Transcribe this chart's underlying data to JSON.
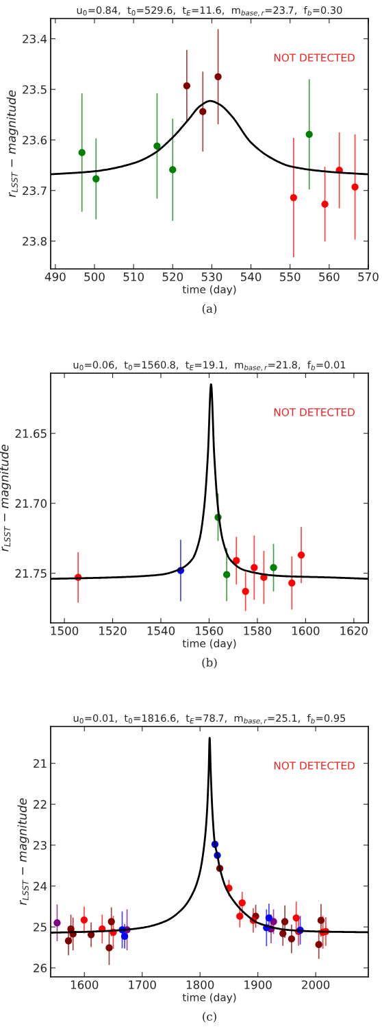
{
  "chart_data": [
    {
      "type": "scatter",
      "title": "u$_{0}$=0.84,  t$_{0}$=529.6,  t$_{E}$=11.6,  m$_{base,r}$=23.7,  f$_{b}$=0.30",
      "xlabel": "time (day)",
      "ylabel": "r$_{LSST}$ − magnitude",
      "annotations": [
        "NOT DETECTED",
        "(a)"
      ],
      "xlim": [
        488.8,
        570
      ],
      "ylim": [
        23.855,
        23.36
      ],
      "xticks": [
        490,
        500,
        510,
        520,
        530,
        540,
        550,
        560,
        570
      ],
      "yticks": [
        23.4,
        23.5,
        23.6,
        23.7,
        23.8
      ],
      "marker": "circle",
      "grid": false,
      "series": [
        {
          "color": "#008000",
          "x": [
            496.8,
            500.4,
            516.0,
            520.0,
            554.9
          ],
          "values": [
            23.625,
            23.677,
            23.612,
            23.659,
            23.589
          ],
          "errors": [
            0.117,
            0.08,
            0.104,
            0.101,
            0.109
          ]
        },
        {
          "color": "#800000",
          "x": [
            523.6,
            527.7,
            531.6
          ],
          "values": [
            23.493,
            23.544,
            23.475
          ],
          "errors": [
            0.071,
            0.079,
            0.094
          ]
        },
        {
          "color": "#ff0000",
          "x": [
            550.9,
            558.9,
            562.6,
            566.6
          ],
          "values": [
            23.714,
            23.727,
            23.66,
            23.693
          ],
          "errors": [
            0.118,
            0.074,
            0.075,
            0.104
          ]
        },
        {
          "type": "line",
          "marker": "none",
          "color": "#000000",
          "x": [
            488.8,
            500,
            510,
            515,
            520,
            524,
            527,
            529.6,
            532,
            535,
            540,
            545,
            550,
            560,
            570
          ],
          "values": [
            23.668,
            23.662,
            23.646,
            23.628,
            23.595,
            23.56,
            23.533,
            23.523,
            23.53,
            23.552,
            23.605,
            23.635,
            23.652,
            23.663,
            23.668
          ]
        }
      ]
    },
    {
      "type": "scatter",
      "title": "u$_{0}$=0.06,  t$_{0}$=1560.8,  t$_{E}$=19.1,  m$_{base,r}$=21.8,  f$_{b}$=0.01",
      "xlabel": "time (day)",
      "ylabel": "r$_{LSST}$ − magnitude",
      "annotations": [
        "NOT DETECTED",
        "(b)"
      ],
      "xlim": [
        1494.3,
        1626
      ],
      "ylim": [
        21.7855,
        21.607
      ],
      "xticks": [
        1500,
        1520,
        1540,
        1560,
        1580,
        1600,
        1620
      ],
      "yticks": [
        21.65,
        {
          "value": 21.7,
          "label": "21.70"
        },
        21.75
      ],
      "marker": "circle",
      "grid": false,
      "series": [
        {
          "color": "#ff0000",
          "x": [
            1505.7,
            1571.3,
            1575.1,
            1578.7,
            1582.7,
            1594.3,
            1598.2
          ],
          "values": [
            21.753,
            21.741,
            21.763,
            21.746,
            21.753,
            21.757,
            21.737
          ],
          "errors": [
            0.018,
            0.017,
            0.014,
            0.023,
            0.019,
            0.019,
            0.02
          ]
        },
        {
          "color": "#0000ff",
          "x": [
            1548.2
          ],
          "values": [
            21.748
          ],
          "errors": [
            0.022
          ]
        },
        {
          "color": "#008000",
          "x": [
            1563.7,
            1567.3,
            1586.7
          ],
          "values": [
            21.71,
            21.751,
            21.746
          ],
          "errors": [
            0.017,
            0.019,
            0.017
          ]
        },
        {
          "type": "line",
          "marker": "none",
          "color": "#000000",
          "x": [
            1494.3,
            1520,
            1540,
            1548,
            1553,
            1556,
            1558,
            1559.5,
            1560.8,
            1562.1,
            1563.6,
            1565.6,
            1568.6,
            1575,
            1590,
            1610,
            1626
          ],
          "values": [
            21.754,
            21.753,
            21.751,
            21.747,
            21.74,
            21.726,
            21.702,
            21.665,
            21.615,
            21.665,
            21.702,
            21.726,
            21.74,
            21.748,
            21.752,
            21.753,
            21.754
          ]
        }
      ]
    },
    {
      "type": "scatter",
      "title": "u$_{0}$=0.01,  t$_{0}$=1816.6,  t$_{E}$=78.7,  m$_{base,r}$=25.1,  f$_{b}$=0.95",
      "xlabel": "time (day)",
      "ylabel": "r$_{LSST}$ − magnitude",
      "annotations": [
        "NOT DETECTED",
        "(c)"
      ],
      "xlim": [
        1541.7,
        2091
      ],
      "ylim": [
        26.22,
        20.1
      ],
      "xticks": [
        1600,
        1700,
        1800,
        1900,
        2000
      ],
      "yticks": [
        21,
        22,
        23,
        24,
        25,
        26
      ],
      "marker": "circle",
      "grid": false,
      "series": [
        {
          "color": "#800080",
          "x": [
            1552.9,
            1673.8,
            1927.1,
            1922.9
          ],
          "values": [
            24.9,
            25.07,
            24.87,
            25.05
          ],
          "errors": [
            0.45,
            0.5,
            0.3,
            0.35
          ]
        },
        {
          "color": "#800000",
          "x": [
            1572.5,
            1576.7,
            1580.4,
            1611.7,
            1642.9,
            1646.7,
            1834.2,
            1896.3,
            1946.7,
            1943.3,
            1958.3,
            2005.4,
            2009.2
          ],
          "values": [
            25.34,
            25.05,
            25.17,
            25.19,
            25.51,
            24.87,
            23.57,
            24.74,
            24.87,
            25.16,
            25.29,
            25.43,
            24.84
          ],
          "errors": [
            0.35,
            0.35,
            0.4,
            0.3,
            0.42,
            0.35,
            null,
            0.28,
            0.4,
            0.3,
            0.35,
            0.35,
            0.4
          ]
        },
        {
          "color": "#ff0000",
          "x": [
            1599.6,
            1630.8,
            1650.0,
            1850.0,
            1872.9,
            1868.8,
            1892.1,
            1966.3,
            1970.4,
            2012.5,
            2017.5
          ],
          "values": [
            24.83,
            25.05,
            25.13,
            24.05,
            24.41,
            24.74,
            24.84,
            24.78,
            25.11,
            25.13,
            25.11
          ],
          "errors": [
            0.33,
            0.35,
            0.4,
            0.2,
            0.27,
            0.27,
            0.3,
            0.4,
            0.35,
            0.4,
            0.35
          ]
        },
        {
          "color": "#0000ff",
          "x": [
            1665.4,
            1669.6,
            1825.8,
            1830.0,
            1915.0,
            1919.2,
            1973.3
          ],
          "values": [
            25.07,
            25.23,
            22.98,
            23.25,
            25.02,
            24.78,
            25.08
          ],
          "errors": [
            0.45,
            0.3,
            null,
            null,
            0.45,
            0.35,
            0.35
          ]
        },
        {
          "type": "line",
          "marker": "none",
          "color": "#000000",
          "x": [
            1541.7,
            1600,
            1650,
            1700,
            1740,
            1770,
            1790,
            1800,
            1808,
            1812,
            1815,
            1816.6,
            1818.5,
            1821.5,
            1825.5,
            1830,
            1834,
            1845,
            1860,
            1880,
            1900,
            1950,
            2000,
            2091
          ],
          "values": [
            25.14,
            25.12,
            25.09,
            25.02,
            24.86,
            24.55,
            24.1,
            23.65,
            22.9,
            22.2,
            21.2,
            20.38,
            21.2,
            22.2,
            22.95,
            23.25,
            23.55,
            24.05,
            24.4,
            24.7,
            24.9,
            25.07,
            25.11,
            25.13
          ]
        }
      ]
    }
  ]
}
